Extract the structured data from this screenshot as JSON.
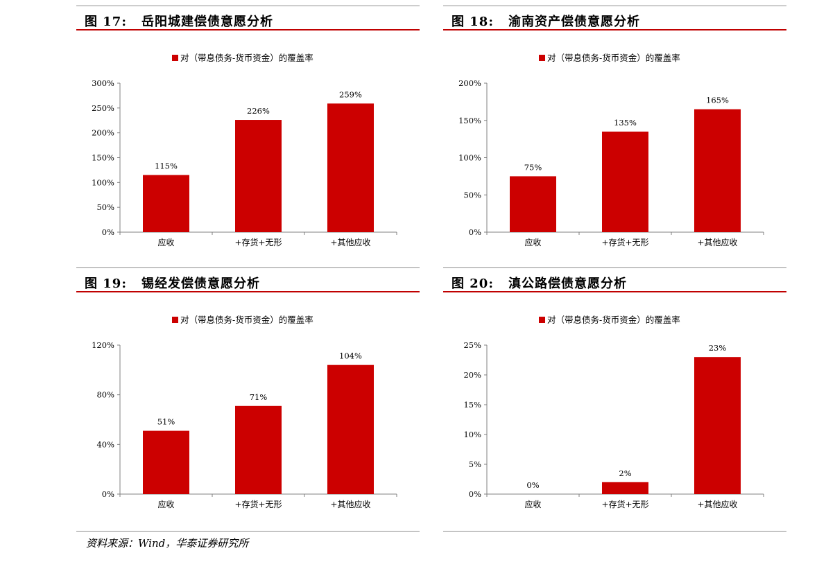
{
  "panels": [
    {
      "num": "图 17:",
      "title": "岳阳城建偿债意愿分析"
    },
    {
      "num": "图 18:",
      "title": "渝南资产偿债意愿分析"
    },
    {
      "num": "图 19:",
      "title": "锡经发偿债意愿分析"
    },
    {
      "num": "图 20:",
      "title": "滇公路偿债意愿分析"
    }
  ],
  "source": "资料来源：Wind，华泰证券研究所",
  "colors": {
    "bar": "#cc0000",
    "title_rule": "#c00000",
    "axis": "#808080"
  },
  "chart_data": [
    {
      "type": "bar",
      "categories": [
        "应收",
        "+存货+无形",
        "+其他应收"
      ],
      "series": [
        {
          "name": "对（带息债务-货币资金）的覆盖率",
          "values": [
            115,
            226,
            259
          ]
        }
      ],
      "data_labels": [
        "115%",
        "226%",
        "259%"
      ],
      "ylim": [
        0,
        300
      ],
      "yticks": [
        0,
        50,
        100,
        150,
        200,
        250,
        300
      ],
      "ytick_labels": [
        "0%",
        "50%",
        "100%",
        "150%",
        "200%",
        "250%",
        "300%"
      ],
      "legend": "top-center",
      "grid": false
    },
    {
      "type": "bar",
      "categories": [
        "应收",
        "+存货+无形",
        "+其他应收"
      ],
      "series": [
        {
          "name": "对（带息债务-货币资金）的覆盖率",
          "values": [
            75,
            135,
            165
          ]
        }
      ],
      "data_labels": [
        "75%",
        "135%",
        "165%"
      ],
      "ylim": [
        0,
        200
      ],
      "yticks": [
        0,
        50,
        100,
        150,
        200
      ],
      "ytick_labels": [
        "0%",
        "50%",
        "100%",
        "150%",
        "200%"
      ],
      "legend": "top-center",
      "grid": false
    },
    {
      "type": "bar",
      "categories": [
        "应收",
        "+存货+无形",
        "+其他应收"
      ],
      "series": [
        {
          "name": "对（带息债务-货币资金）的覆盖率",
          "values": [
            51,
            71,
            104
          ]
        }
      ],
      "data_labels": [
        "51%",
        "71%",
        "104%"
      ],
      "ylim": [
        0,
        120
      ],
      "yticks": [
        0,
        40,
        80,
        120
      ],
      "ytick_labels": [
        "0%",
        "40%",
        "80%",
        "120%"
      ],
      "legend": "top-center",
      "grid": false
    },
    {
      "type": "bar",
      "categories": [
        "应收",
        "+存货+无形",
        "+其他应收"
      ],
      "series": [
        {
          "name": "对（带息债务-货币资金）的覆盖率",
          "values": [
            0,
            2,
            23
          ]
        }
      ],
      "data_labels": [
        "0%",
        "2%",
        "23%"
      ],
      "ylim": [
        0,
        25
      ],
      "yticks": [
        0,
        5,
        10,
        15,
        20,
        25
      ],
      "ytick_labels": [
        "0%",
        "5%",
        "10%",
        "15%",
        "20%",
        "25%"
      ],
      "legend": "top-center",
      "grid": false
    }
  ]
}
